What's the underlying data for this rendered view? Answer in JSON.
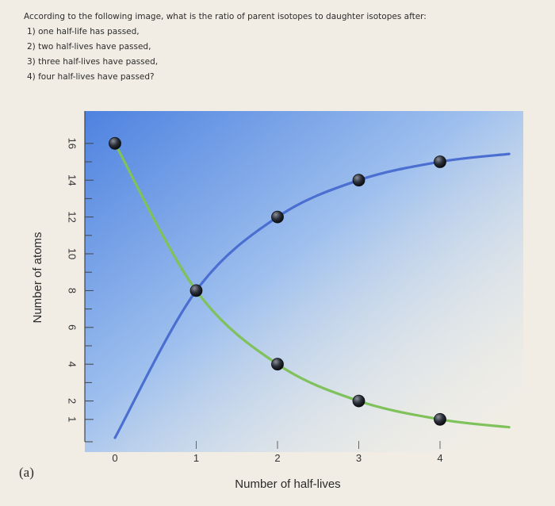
{
  "question": {
    "prompt": "According to the following image, what is the ratio of parent isotopes to daughter isotopes after:",
    "items": [
      "1) one half-life has passed,",
      "2) two half-lives have passed,",
      "3) three half-lives have passed,",
      "4) four half-lives have passed?"
    ]
  },
  "chart_data": {
    "type": "line",
    "panel_label": "(a)",
    "xlabel": "Number of half-lives",
    "ylabel": "Number of atoms",
    "xlim": [
      0,
      4.9
    ],
    "ylim": [
      0,
      17
    ],
    "x_ticks": [
      0,
      1,
      2,
      3,
      4
    ],
    "x_tick_labels": [
      "0",
      "1",
      "2",
      "3",
      "4"
    ],
    "y_ticks": [
      1,
      2,
      4,
      6,
      8,
      10,
      12,
      14,
      16
    ],
    "y_tick_labels": [
      "1",
      "2",
      "4",
      "6",
      "8",
      "10",
      "12",
      "14",
      "16"
    ],
    "grid": false,
    "legend": "none",
    "series": [
      {
        "color": "#7fc15a",
        "points": [
          [
            0,
            16
          ],
          [
            1,
            8
          ],
          [
            2,
            4
          ],
          [
            3,
            2
          ],
          [
            4,
            1
          ]
        ]
      },
      {
        "color": "#4b6fd0",
        "points": [
          [
            0,
            0
          ],
          [
            1,
            8
          ],
          [
            2,
            12
          ],
          [
            3,
            14
          ],
          [
            4,
            15
          ]
        ]
      }
    ]
  }
}
